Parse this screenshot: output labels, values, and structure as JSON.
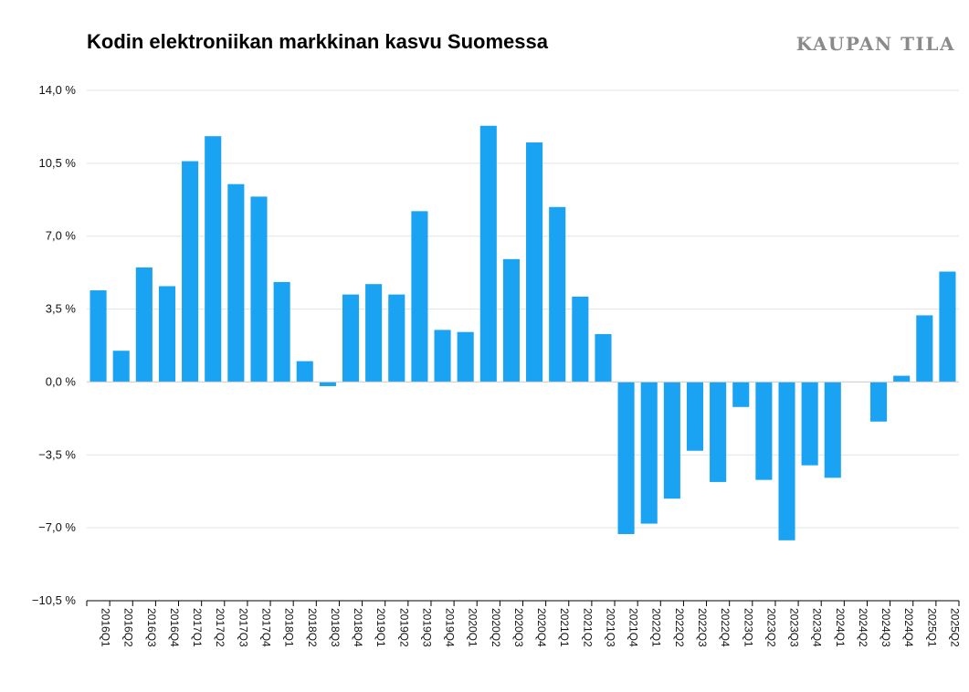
{
  "brand": "KAUPAN TILA",
  "chart_data": {
    "type": "bar",
    "title": "Kodin elektroniikan markkinan kasvu Suomessa",
    "xlabel": "",
    "ylabel": "",
    "ylim": [
      -10.5,
      14.0
    ],
    "yticks": [
      14.0,
      10.5,
      7.0,
      3.5,
      0.0,
      -3.5,
      -7.0,
      -10.5
    ],
    "ytick_labels": [
      "14,0 %",
      "10,5 %",
      "7,0 %",
      "3,5 %",
      "0,0 %",
      "−3,5 %",
      "−7,0 %",
      "−10,5 %"
    ],
    "grid": true,
    "bar_color": "#1aa3f2",
    "categories": [
      "2016Q1",
      "2016Q2",
      "2016Q3",
      "2016Q4",
      "2017Q1",
      "2017Q2",
      "2017Q3",
      "2017Q4",
      "2018Q1",
      "2018Q2",
      "2018Q3",
      "2018Q4",
      "2019Q1",
      "2019Q2",
      "2019Q3",
      "2019Q4",
      "2020Q1",
      "2020Q2",
      "2020Q3",
      "2020Q4",
      "2021Q1",
      "2021Q2",
      "2021Q3",
      "2021Q4",
      "2022Q1",
      "2022Q2",
      "2022Q3",
      "2022Q4",
      "2023Q1",
      "2023Q2",
      "2023Q3",
      "2023Q4",
      "2024Q1",
      "2024Q2",
      "2024Q3",
      "2024Q4",
      "2025Q1",
      "2025Q2"
    ],
    "values": [
      4.4,
      1.5,
      5.5,
      4.6,
      10.6,
      11.8,
      9.5,
      8.9,
      4.8,
      1.0,
      -0.2,
      4.2,
      4.7,
      4.2,
      8.2,
      2.5,
      2.4,
      12.3,
      5.9,
      11.5,
      8.4,
      4.1,
      2.3,
      -7.3,
      -6.8,
      -5.6,
      -3.3,
      -4.8,
      -1.2,
      -4.7,
      -7.6,
      -4.0,
      -4.6,
      0.0,
      -1.9,
      0.3,
      3.2,
      5.3
    ]
  }
}
